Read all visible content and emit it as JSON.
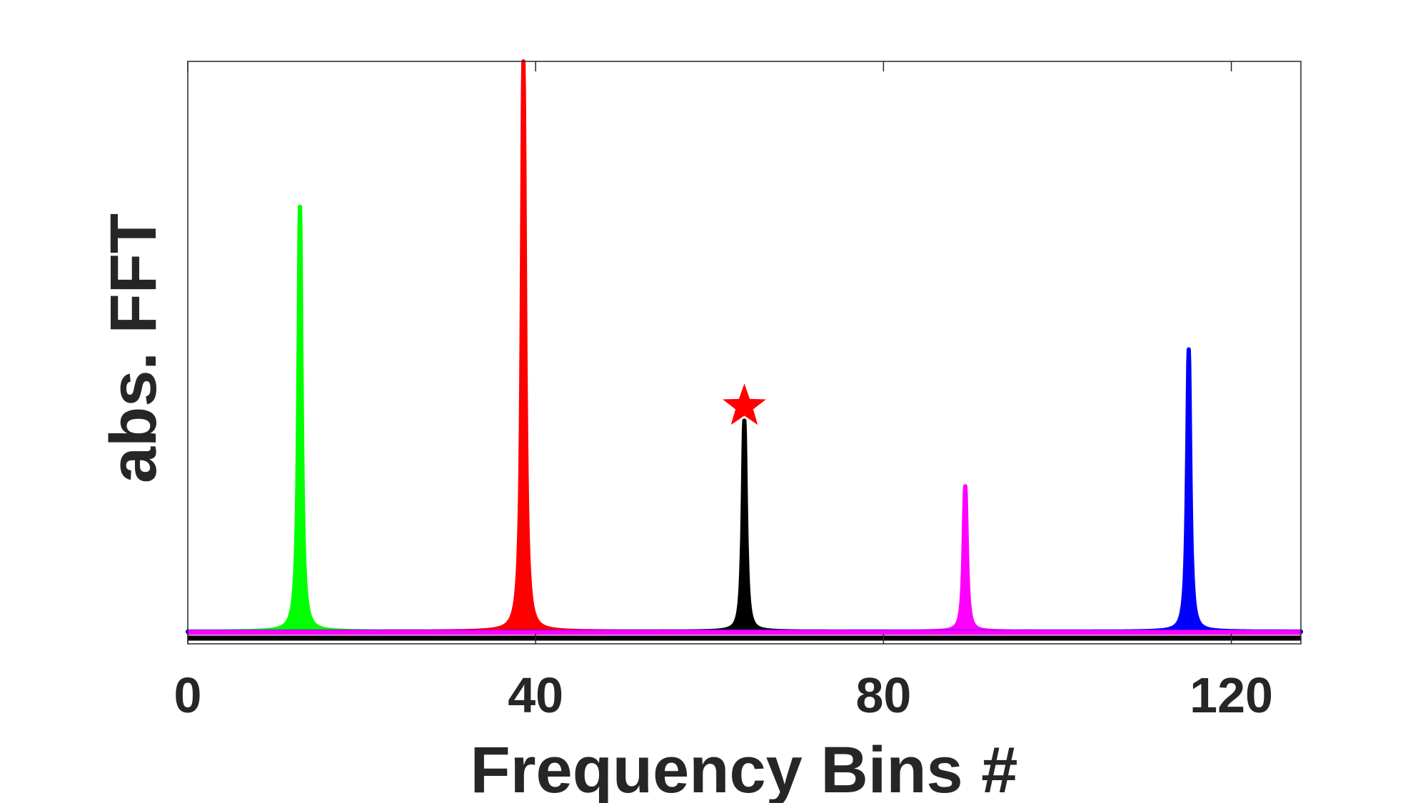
{
  "chart_data": {
    "type": "line",
    "xlabel": "Frequency Bins #",
    "ylabel": "abs. FFT",
    "xlim": [
      0,
      128
    ],
    "ylim": [
      0,
      1
    ],
    "xticks": [
      0,
      40,
      80,
      120
    ],
    "yticks_labeled": false,
    "grid": false,
    "legend": "none",
    "series": [
      {
        "color": "#00ff00",
        "peak_x": 12.9,
        "peak_y": 0.745
      },
      {
        "color": "#ff0000",
        "peak_x": 38.6,
        "peak_y": 1.0
      },
      {
        "color": "#000000",
        "peak_x": 64.0,
        "peak_y": 0.37
      },
      {
        "color": "#ff00ff",
        "peak_x": 89.4,
        "peak_y": 0.255
      },
      {
        "color": "#0000ff",
        "peak_x": 115.1,
        "peak_y": 0.495
      }
    ],
    "markers": [
      {
        "shape": "star",
        "color": "#ff0000",
        "x": 64.0,
        "y": 0.395
      }
    ]
  }
}
